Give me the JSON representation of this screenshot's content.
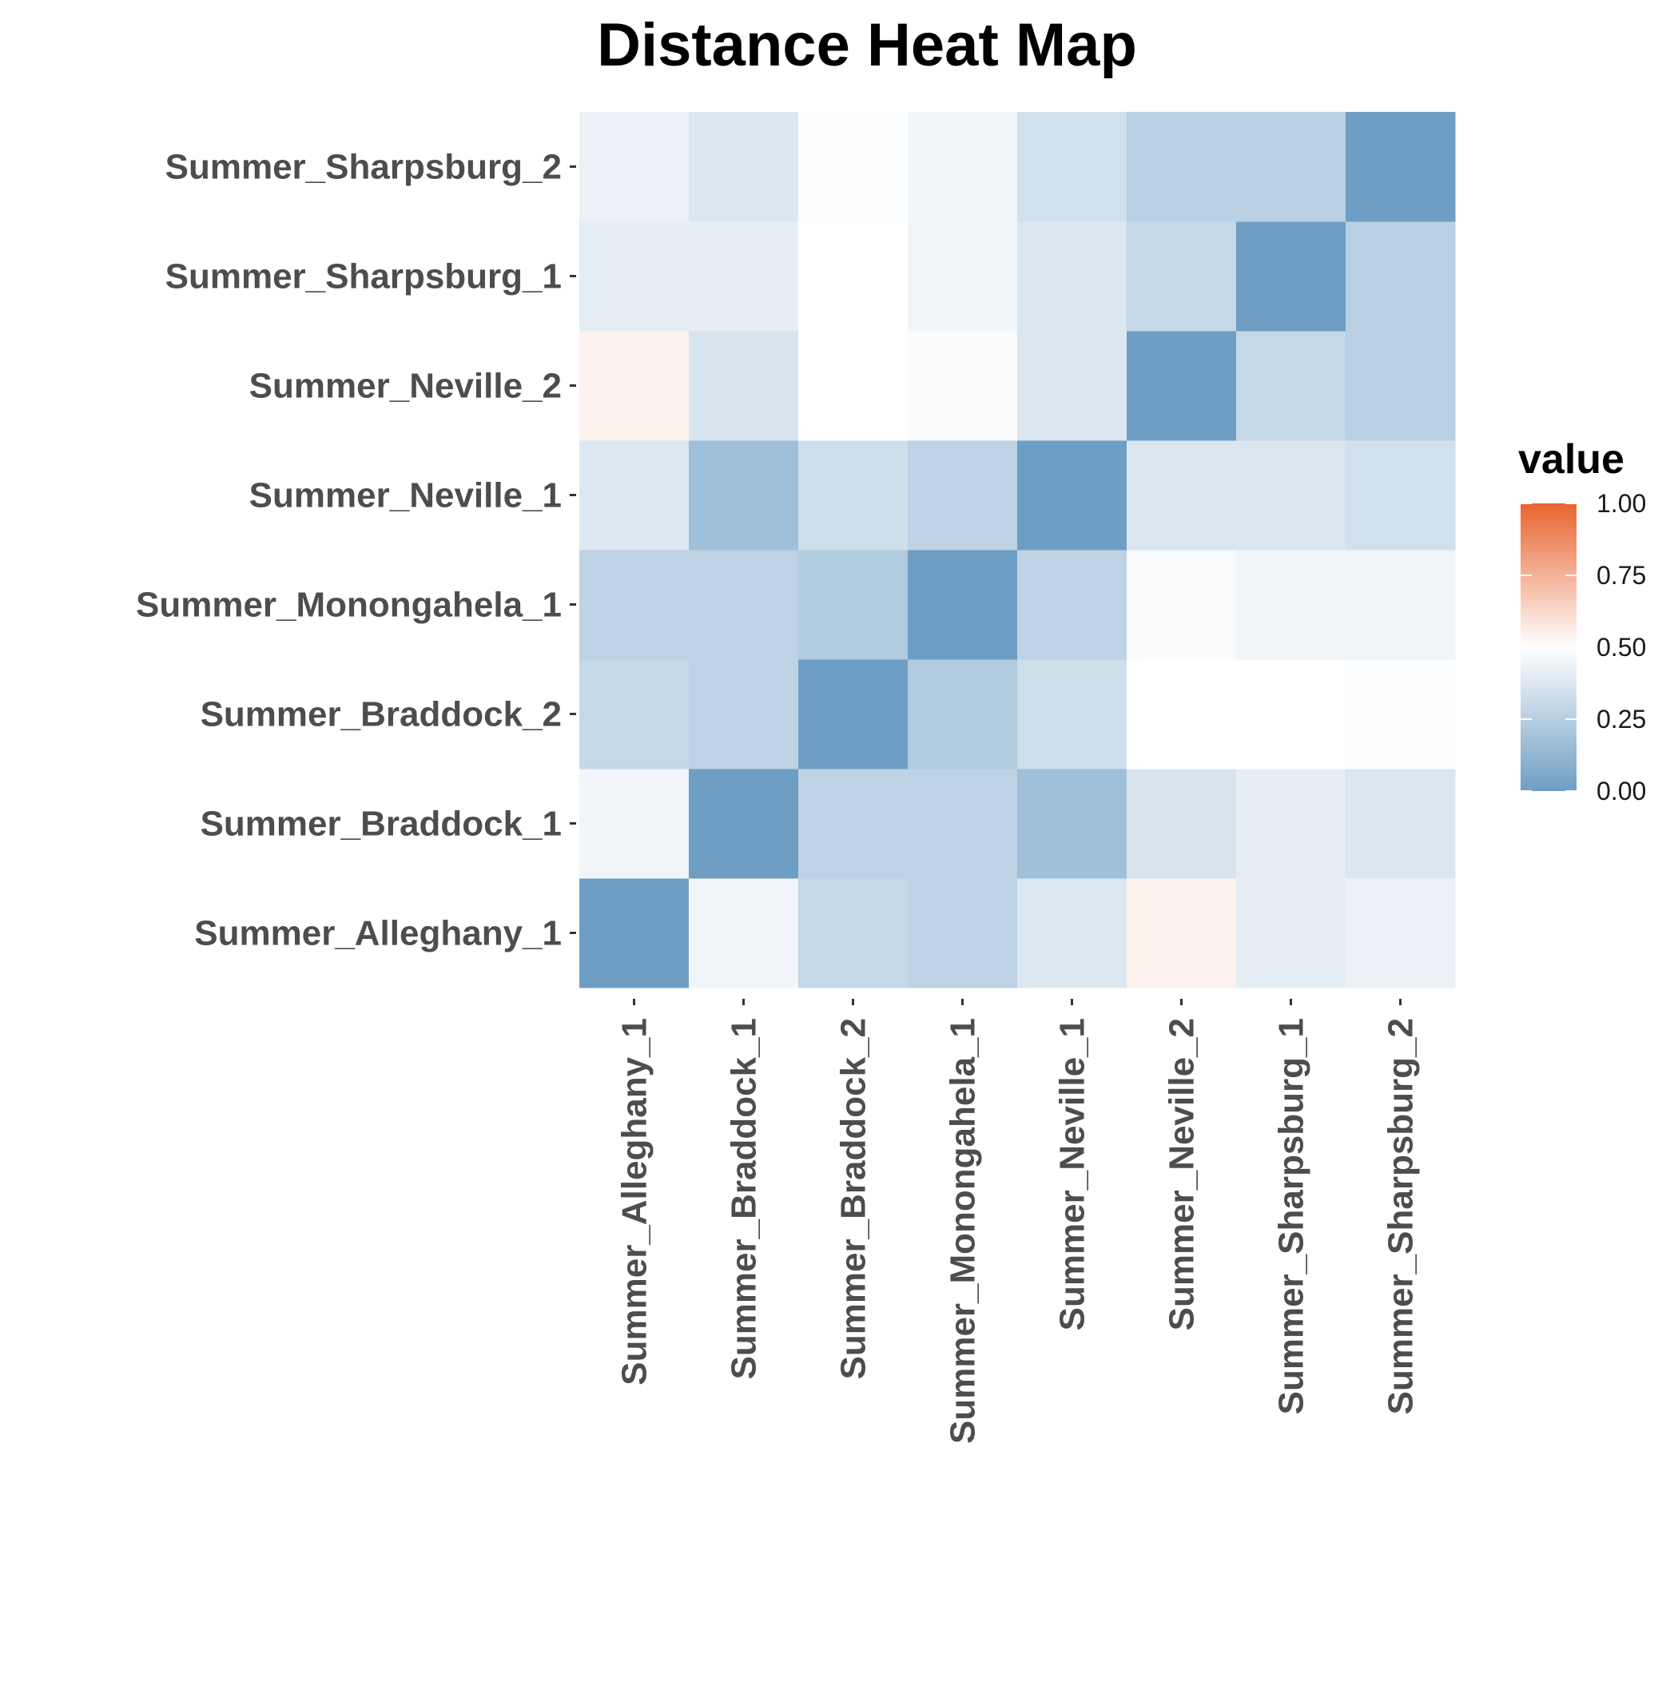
{
  "chart_data": {
    "type": "heatmap",
    "title": "Distance Heat Map",
    "xlabel": "",
    "ylabel": "",
    "x_categories": [
      "Summer_Alleghany_1",
      "Summer_Braddock_1",
      "Summer_Braddock_2",
      "Summer_Monongahela_1",
      "Summer_Neville_1",
      "Summer_Neville_2",
      "Summer_Sharpsburg_1",
      "Summer_Sharpsburg_2"
    ],
    "y_categories": [
      "Summer_Alleghany_1",
      "Summer_Braddock_1",
      "Summer_Braddock_2",
      "Summer_Monongahela_1",
      "Summer_Neville_1",
      "Summer_Neville_2",
      "Summer_Sharpsburg_1",
      "Summer_Sharpsburg_2"
    ],
    "values": [
      [
        0.0,
        0.45,
        0.3,
        0.27,
        0.38,
        0.54,
        0.41,
        0.43
      ],
      [
        0.45,
        0.0,
        0.27,
        0.27,
        0.17,
        0.36,
        0.41,
        0.37
      ],
      [
        0.3,
        0.27,
        0.0,
        0.23,
        0.33,
        0.5,
        0.5,
        0.49
      ],
      [
        0.27,
        0.27,
        0.23,
        0.0,
        0.27,
        0.48,
        0.45,
        0.45
      ],
      [
        0.38,
        0.17,
        0.33,
        0.27,
        0.0,
        0.37,
        0.37,
        0.34
      ],
      [
        0.54,
        0.36,
        0.5,
        0.48,
        0.37,
        0.0,
        0.3,
        0.26
      ],
      [
        0.41,
        0.41,
        0.5,
        0.45,
        0.37,
        0.3,
        0.0,
        0.26
      ],
      [
        0.43,
        0.37,
        0.49,
        0.45,
        0.34,
        0.26,
        0.26,
        0.0
      ]
    ],
    "color_scale": {
      "low": "#6f9ec4",
      "mid": "#ffffff",
      "high": "#e86430",
      "midpoint": 0.5,
      "limits": [
        0,
        1
      ]
    },
    "legend": {
      "title": "value",
      "ticks": [
        "0.00",
        "0.25",
        "0.50",
        "0.75",
        "1.00"
      ],
      "placement": "right"
    },
    "grid": false
  }
}
